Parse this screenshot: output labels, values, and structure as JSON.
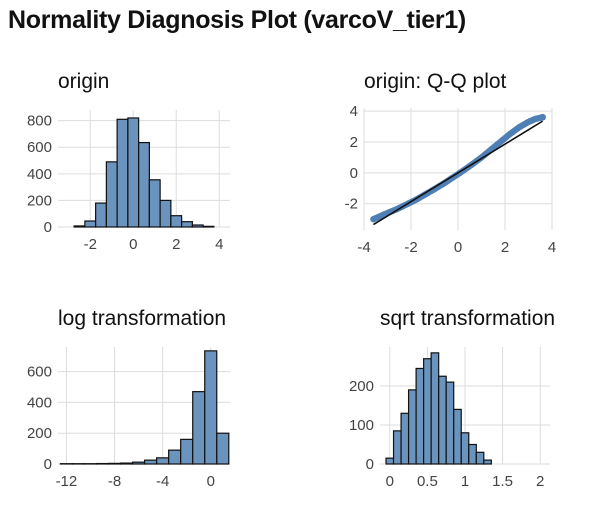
{
  "title": "Normality Diagnosis Plot (varcoV_tier1)",
  "colors": {
    "bar_fill": "#6a93bd",
    "bar_stroke": "#111111",
    "point": "#4f7fb5",
    "line": "#111111",
    "grid": "#dddddd",
    "text": "#444444"
  },
  "chart_data": [
    {
      "type": "bar",
      "subtitle": "origin",
      "xlim": [
        -3.5,
        4.5
      ],
      "ylim": [
        0,
        880
      ],
      "xticks": [
        -2,
        0,
        2,
        4
      ],
      "yticks": [
        0,
        200,
        400,
        600,
        800
      ],
      "bin_width": 0.5,
      "bin_centers": [
        -2.5,
        -2.0,
        -1.5,
        -1.0,
        -0.5,
        0.0,
        0.5,
        1.0,
        1.5,
        2.0,
        2.5,
        3.0,
        3.5
      ],
      "values": [
        8,
        45,
        180,
        490,
        810,
        820,
        635,
        355,
        200,
        85,
        40,
        15,
        5
      ]
    },
    {
      "type": "scatter",
      "subtitle": "origin: Q-Q plot",
      "xlim": [
        -4,
        4
      ],
      "ylim": [
        -3.7,
        4.2
      ],
      "xticks": [
        -4,
        -2,
        0,
        2,
        4
      ],
      "yticks": [
        -2,
        0,
        2,
        4
      ],
      "qq_points": [
        [
          -3.6,
          -3.0
        ],
        [
          -3.3,
          -2.8
        ],
        [
          -3.0,
          -2.6
        ],
        [
          -2.6,
          -2.35
        ],
        [
          -2.2,
          -2.05
        ],
        [
          -1.8,
          -1.75
        ],
        [
          -1.4,
          -1.4
        ],
        [
          -1.0,
          -1.05
        ],
        [
          -0.6,
          -0.68
        ],
        [
          -0.2,
          -0.28
        ],
        [
          0.2,
          0.12
        ],
        [
          0.6,
          0.55
        ],
        [
          1.0,
          1.0
        ],
        [
          1.4,
          1.5
        ],
        [
          1.8,
          2.0
        ],
        [
          2.2,
          2.5
        ],
        [
          2.6,
          2.95
        ],
        [
          3.0,
          3.3
        ],
        [
          3.3,
          3.5
        ],
        [
          3.6,
          3.6
        ]
      ],
      "qq_line": [
        [
          -3.6,
          -3.35
        ],
        [
          3.6,
          3.35
        ]
      ]
    },
    {
      "type": "bar",
      "subtitle": "log transformation",
      "xlim": [
        -12.7,
        1.6
      ],
      "ylim": [
        0,
        760
      ],
      "xticks": [
        -12,
        -8,
        -4,
        0
      ],
      "yticks": [
        0,
        200,
        400,
        600
      ],
      "bin_width": 1.0,
      "bin_centers": [
        -12,
        -11,
        -10,
        -9,
        -8,
        -7,
        -6,
        -5,
        -4,
        -3,
        -2,
        -1,
        0,
        1
      ],
      "values": [
        2,
        2,
        2,
        3,
        4,
        6,
        12,
        25,
        40,
        90,
        160,
        470,
        735,
        200
      ]
    },
    {
      "type": "bar",
      "subtitle": "sqrt transformation",
      "xlim": [
        -0.13,
        2.13
      ],
      "ylim": [
        0,
        300
      ],
      "xticks": [
        0.0,
        0.5,
        1.0,
        1.5,
        2.0
      ],
      "yticks": [
        0,
        100,
        200
      ],
      "bin_width": 0.1,
      "bin_centers": [
        0.0,
        0.1,
        0.2,
        0.3,
        0.4,
        0.5,
        0.6,
        0.7,
        0.8,
        0.9,
        1.0,
        1.1,
        1.2,
        1.3,
        1.4,
        1.5,
        1.6,
        1.7,
        1.8,
        1.9,
        2.0
      ],
      "values": [
        15,
        85,
        130,
        190,
        245,
        270,
        285,
        225,
        210,
        140,
        80,
        50,
        30,
        10,
        0,
        0,
        0,
        0,
        0,
        0,
        0
      ]
    }
  ]
}
